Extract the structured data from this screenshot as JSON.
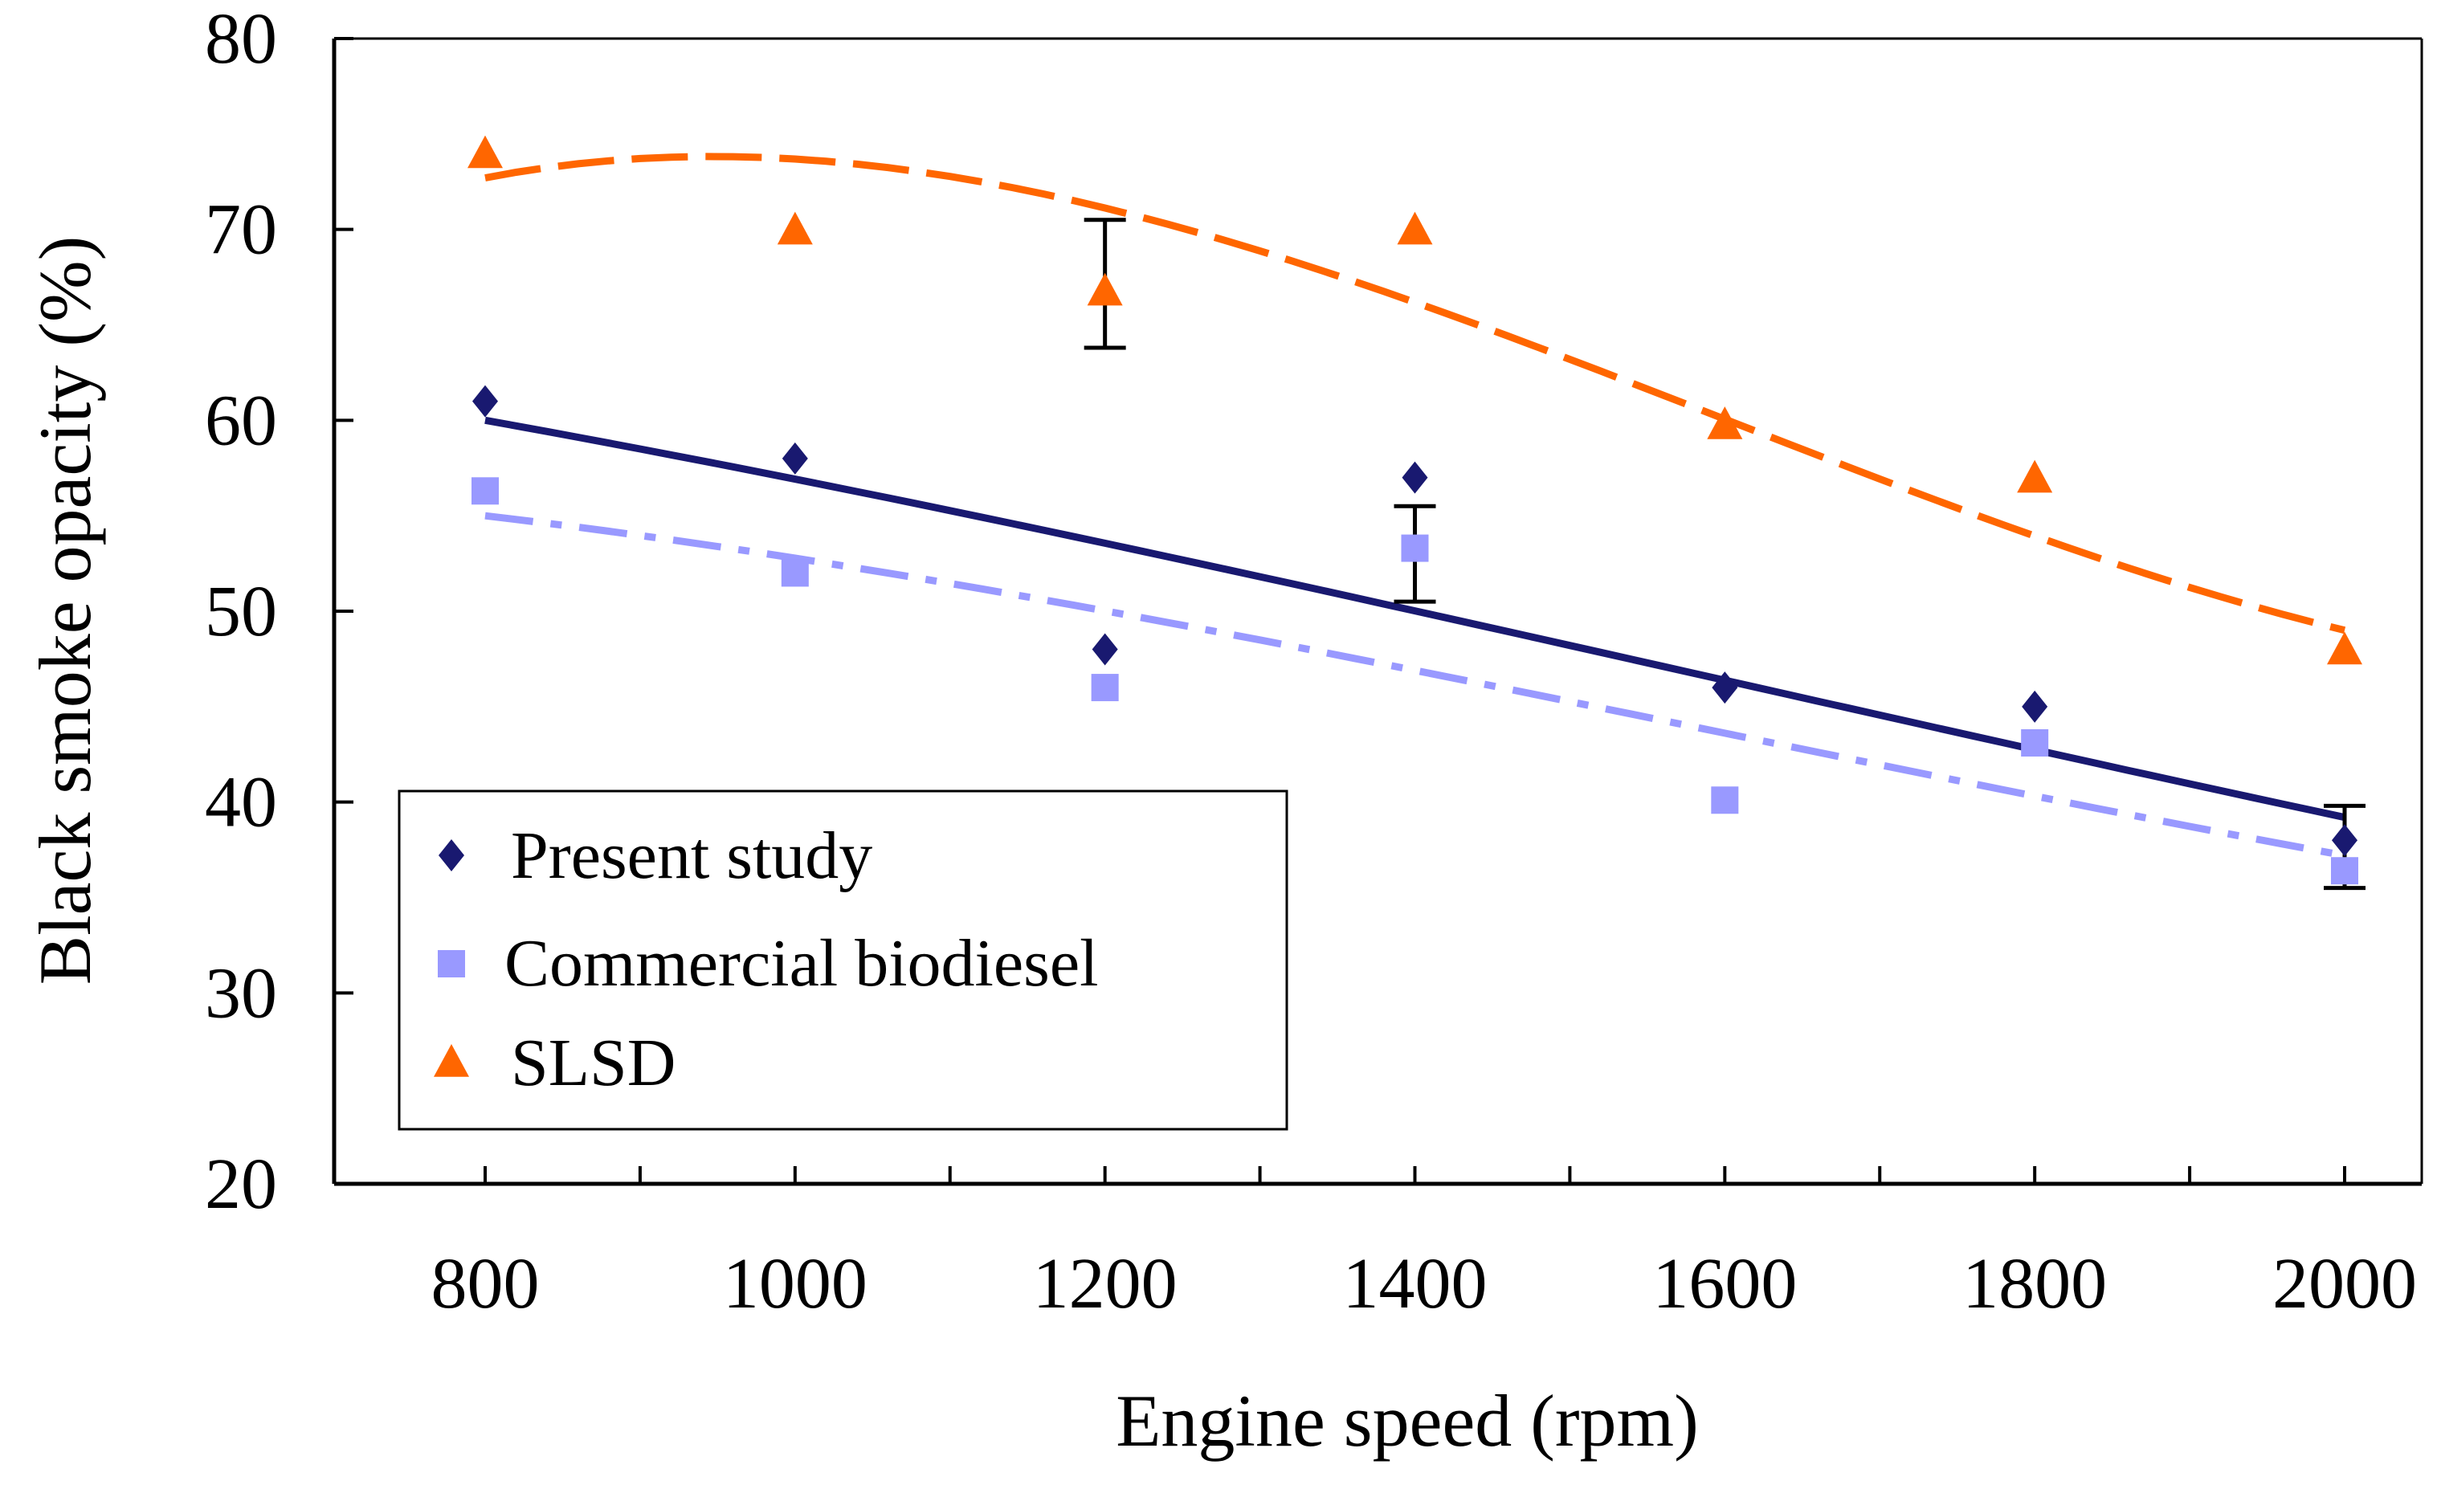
{
  "chart_data": {
    "type": "scatter",
    "title": "",
    "xlabel": "Engine speed (rpm)",
    "ylabel": "Black smoke opacity (%)",
    "xlim": [
      700,
      2100
    ],
    "ylim": [
      20,
      80
    ],
    "x_ticks": [
      800,
      1000,
      1200,
      1400,
      1600,
      1800,
      2000
    ],
    "x_tick_labels": [
      "800",
      "1000",
      "1200",
      "1400",
      "1600",
      "1800",
      "2000"
    ],
    "y_ticks": [
      20,
      30,
      40,
      50,
      60,
      70,
      80
    ],
    "y_tick_labels": [
      "20",
      "30",
      "40",
      "50",
      "60",
      "70",
      "80"
    ],
    "x_minor_step": 100,
    "grid": false,
    "legend_position": "bottom-left",
    "x": [
      800,
      1000,
      1200,
      1400,
      1600,
      1800,
      2000
    ],
    "series": [
      {
        "name": "Present study",
        "marker": "diamond",
        "color": "#191970",
        "values": [
          61,
          58,
          48,
          57,
          46,
          45,
          38
        ],
        "trend": {
          "style": "solid",
          "start": [
            800,
            60
          ],
          "end": [
            2000,
            39.2
          ],
          "curvature": 0.04
        },
        "error_bars": [
          {
            "x": 1400,
            "low": 50.5,
            "high": 55.5
          },
          {
            "x": 2000,
            "low": 35.5,
            "high": 39.8
          }
        ]
      },
      {
        "name": "Commercial biodiesel",
        "marker": "square",
        "color": "#9999ff",
        "values": [
          56.3,
          52,
          46,
          53.3,
          40.1,
          43.1,
          36.4
        ],
        "trend": {
          "style": "dashdot",
          "start": [
            800,
            55
          ],
          "end": [
            2000,
            37.2
          ],
          "curvature": 0.09
        }
      },
      {
        "name": "SLSD",
        "marker": "triangle",
        "color": "#ff6600",
        "values": [
          74,
          70,
          66.8,
          70,
          59.8,
          57,
          48
        ],
        "trend": {
          "style": "dash",
          "start": [
            800,
            72.7
          ],
          "end": [
            2000,
            49
          ],
          "curvature": 0.45
        },
        "error_bars": [
          {
            "x": 1200,
            "low": 63.8,
            "high": 70.5
          }
        ]
      }
    ]
  }
}
